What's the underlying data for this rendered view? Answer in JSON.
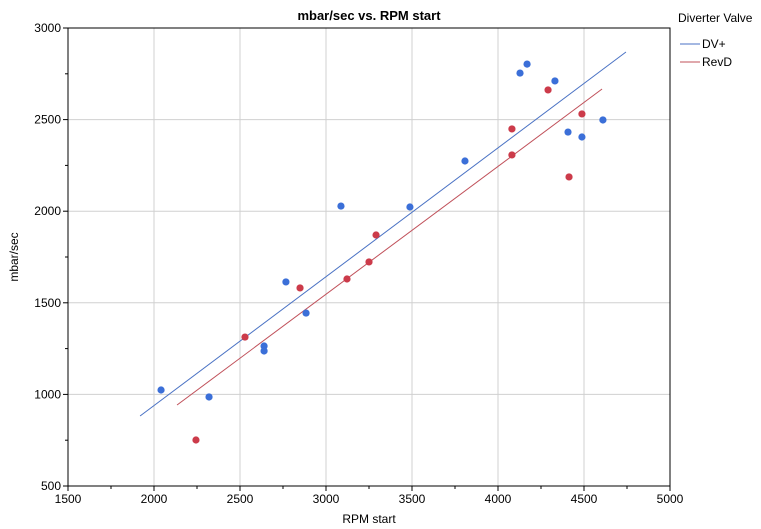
{
  "chart_data": {
    "type": "scatter",
    "title": "mbar/sec vs. RPM start",
    "xlabel": "RPM start",
    "ylabel": "mbar/sec",
    "xlim": [
      1500,
      5000
    ],
    "ylim": [
      500,
      3000
    ],
    "xticks": [
      "1500",
      "2000",
      "2500",
      "3000",
      "3500",
      "4000",
      "4500",
      "5000"
    ],
    "yticks": [
      "500",
      "1000",
      "1500",
      "2000",
      "2500",
      "3000"
    ],
    "grid": true,
    "legend": {
      "title": "Diverter Valve",
      "placement": "right"
    },
    "series": [
      {
        "name": "DV+",
        "color": "#3b6fd8",
        "line_color": "#4a72c4",
        "points": [
          [
            2041,
            1024
          ],
          [
            2320,
            986
          ],
          [
            2640,
            1264
          ],
          [
            2640,
            1237
          ],
          [
            2767,
            1614
          ],
          [
            2884,
            1444
          ],
          [
            3087,
            2028
          ],
          [
            3488,
            2023
          ],
          [
            3808,
            2274
          ],
          [
            4128,
            2754
          ],
          [
            4169,
            2803
          ],
          [
            4331,
            2711
          ],
          [
            4407,
            2432
          ],
          [
            4488,
            2405
          ],
          [
            4610,
            2498
          ]
        ],
        "fit_line": [
          [
            1919,
            882
          ],
          [
            4744,
            2869
          ]
        ]
      },
      {
        "name": "RevD",
        "color": "#cc3b4a",
        "line_color": "#c0505a",
        "points": [
          [
            2244,
            751
          ],
          [
            2529,
            1313
          ],
          [
            2849,
            1581
          ],
          [
            3122,
            1630
          ],
          [
            3250,
            1723
          ],
          [
            3291,
            1870
          ],
          [
            4081,
            2449
          ],
          [
            4081,
            2307
          ],
          [
            4291,
            2662
          ],
          [
            4488,
            2531
          ],
          [
            4413,
            2187
          ]
        ],
        "fit_line": [
          [
            2134,
            942
          ],
          [
            4605,
            2667
          ]
        ]
      }
    ]
  }
}
